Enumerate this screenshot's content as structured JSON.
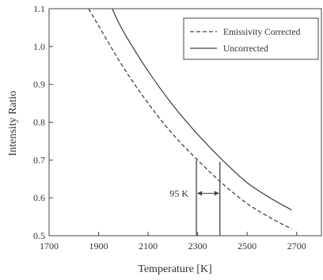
{
  "chart_data": {
    "type": "line",
    "xlabel": "Temperature [K]",
    "ylabel": "Intensity Ratio",
    "xlim": [
      1700,
      2800
    ],
    "ylim": [
      0.5,
      1.1
    ],
    "xticks": [
      1700,
      1900,
      2100,
      2300,
      2500,
      2700
    ],
    "yticks": [
      0.5,
      0.6,
      0.7,
      0.8,
      0.9,
      1.0,
      1.1
    ],
    "xtick_labels": [
      "1700",
      "1900",
      "2100",
      "2300",
      "2500",
      "2700"
    ],
    "ytick_labels": [
      "0.5",
      "0.6",
      "0.7",
      "0.8",
      "0.9",
      "1.0",
      "1.1"
    ],
    "grid": false,
    "legend_position": "top-right",
    "series": [
      {
        "name": "Emissivity Corrected",
        "style": "dashed",
        "color": "#444444",
        "x": [
          1860,
          1900,
          2000,
          2100,
          2200,
          2300,
          2400,
          2500,
          2600,
          2680
        ],
        "y": [
          1.1,
          1.055,
          0.945,
          0.85,
          0.768,
          0.7,
          0.638,
          0.585,
          0.545,
          0.518
        ]
      },
      {
        "name": "Uncorrected",
        "style": "solid",
        "color": "#444444",
        "x": [
          1955,
          2000,
          2100,
          2200,
          2300,
          2400,
          2500,
          2600,
          2680
        ],
        "y": [
          1.1,
          1.04,
          0.935,
          0.845,
          0.768,
          0.7,
          0.64,
          0.597,
          0.568
        ]
      }
    ],
    "annotation": {
      "text": "95 K",
      "x_start": 2295,
      "x_end": 2390,
      "y": 0.612,
      "line1_top": 0.7,
      "line2_top": 0.695
    }
  }
}
